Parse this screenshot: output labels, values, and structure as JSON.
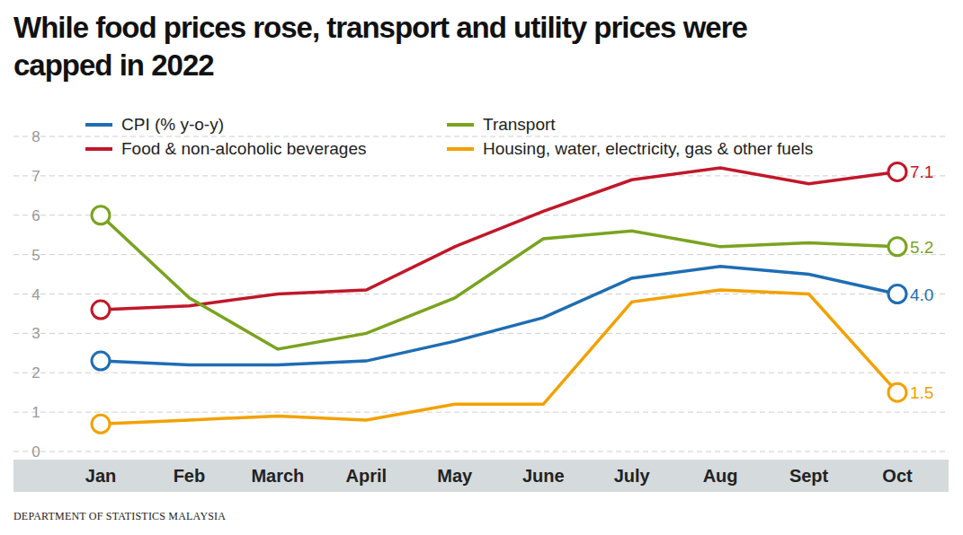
{
  "chart_data": {
    "type": "line",
    "title": "While food prices rose, transport and utility prices were capped in 2022",
    "source": "DEPARTMENT OF STATISTICS MALAYSIA",
    "categories": [
      "Jan",
      "Feb",
      "March",
      "April",
      "May",
      "June",
      "July",
      "Aug",
      "Sept",
      "Oct"
    ],
    "series": [
      {
        "name": "CPI (% y-o-y)",
        "color": "#1f6db3",
        "values": [
          2.3,
          2.2,
          2.2,
          2.3,
          2.8,
          3.4,
          4.4,
          4.7,
          4.5,
          4.0
        ],
        "value_labels": [
          null,
          null,
          null,
          null,
          null,
          null,
          null,
          null,
          null,
          "4.0"
        ]
      },
      {
        "name": "Food & non-alcoholic beverages",
        "color": "#c0182a",
        "values": [
          3.6,
          3.7,
          4.0,
          4.1,
          5.2,
          6.1,
          6.9,
          7.2,
          6.8,
          7.1
        ],
        "value_labels": [
          null,
          null,
          null,
          null,
          null,
          null,
          null,
          null,
          null,
          "7.1"
        ]
      },
      {
        "name": "Transport",
        "color": "#7aa320",
        "values": [
          6.0,
          3.9,
          2.6,
          3.0,
          3.9,
          5.4,
          5.6,
          5.2,
          5.3,
          5.2
        ],
        "value_labels": [
          null,
          null,
          null,
          null,
          null,
          null,
          null,
          null,
          null,
          "5.2"
        ]
      },
      {
        "name": "Housing, water, electricity, gas & other fuels",
        "color": "#f2a100",
        "values": [
          0.7,
          0.8,
          0.9,
          0.8,
          1.2,
          1.2,
          3.8,
          4.1,
          4.0,
          1.5
        ],
        "value_labels": [
          null,
          null,
          null,
          null,
          null,
          null,
          null,
          null,
          null,
          "1.5"
        ]
      }
    ],
    "ylim": [
      0,
      8
    ],
    "yticks": [
      0,
      1,
      2,
      3,
      4,
      5,
      6,
      7,
      8
    ],
    "grid": true,
    "legend": "top",
    "marker": "circle",
    "data_labels": true
  }
}
